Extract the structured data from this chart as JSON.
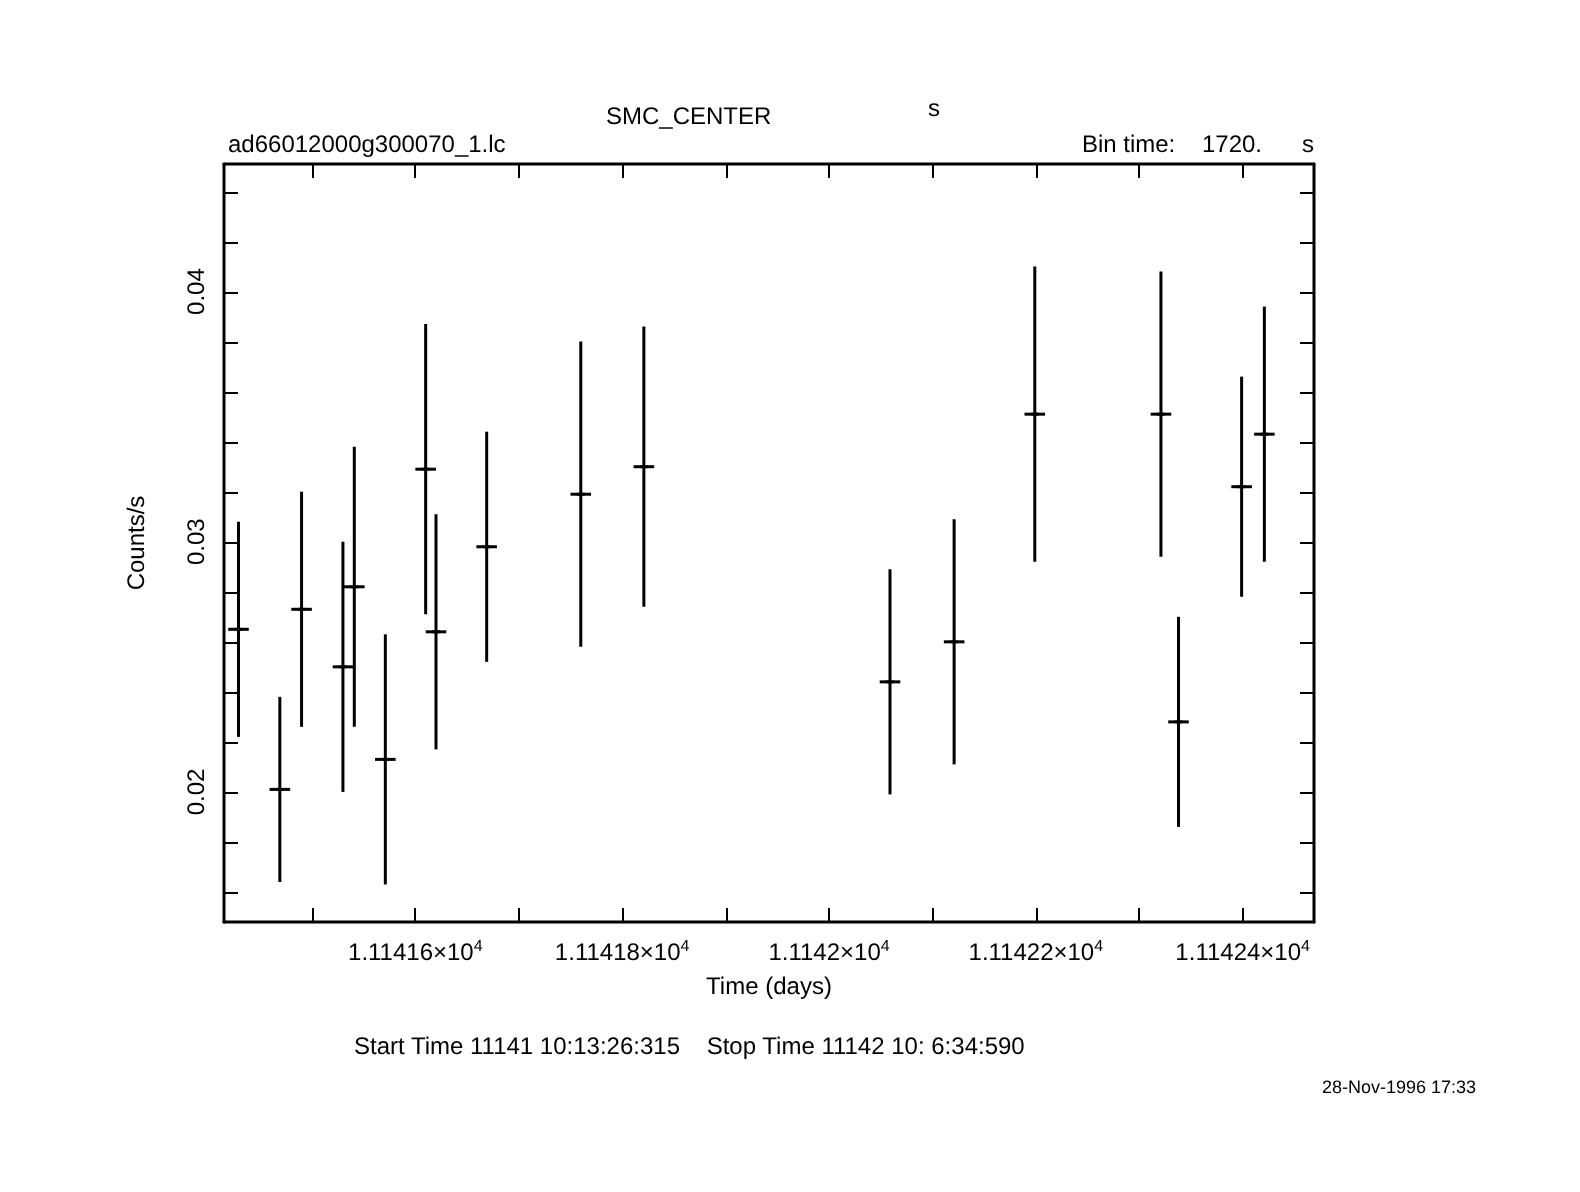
{
  "chart_data": {
    "type": "scatter",
    "title": "SMC_CENTER",
    "xlabel": "Time (days)",
    "ylabel": "Counts/s",
    "annotations": [
      "s",
      "ad66012000g300070_1.lc",
      "Bin time:    1720.      s",
      "Start Time 11141 10:13:26:315    Stop Time 11142 10: 6:34:590",
      "28-Nov-1996 17:33"
    ],
    "grid": false,
    "x": [
      11141.429,
      11141.469,
      11141.49,
      11141.53,
      11141.541,
      11141.571,
      11141.61,
      11141.62,
      11141.669,
      11141.76,
      11141.821,
      11142.059,
      11142.121,
      11142.199,
      11142.321,
      11142.338,
      11142.399,
      11142.421
    ],
    "series": [
      {
        "color": "#000000",
        "values": [
          0.0265,
          0.0201,
          0.0273,
          0.025,
          0.0282,
          0.0213,
          0.0329,
          0.0264,
          0.0298,
          0.0319,
          0.033,
          0.0244,
          0.026,
          0.0351,
          0.0351,
          0.0228,
          0.0322,
          0.0343
        ],
        "errors": [
          0.0043,
          0.0037,
          0.0047,
          0.005,
          0.0056,
          0.005,
          0.0058,
          0.0047,
          0.0046,
          0.0061,
          0.0056,
          0.0045,
          0.0049,
          0.0059,
          0.0057,
          0.0042,
          0.0044,
          0.0051
        ],
        "xerrors": [
          0.00995,
          0.00995,
          0.00995,
          0.00995,
          0.00995,
          0.00995,
          0.00995,
          0.00995,
          0.00995,
          0.00995,
          0.00995,
          0.00995,
          0.00995,
          0.00995,
          0.00995,
          0.00995,
          0.00995,
          0.00995
        ]
      }
    ],
    "xlim": [
      11141.415,
      11142.469
    ],
    "xticks": [
      {
        "value": 11141.5,
        "label": null
      },
      {
        "value": 11141.6,
        "label": "1.11416×10$^{4}$"
      },
      {
        "value": 11141.7,
        "label": null
      },
      {
        "value": 11141.8,
        "label": "1.11418×10$^{4}$"
      },
      {
        "value": 11141.9,
        "label": null
      },
      {
        "value": 11142.0,
        "label": "1.1142×10$^{4}$"
      },
      {
        "value": 11142.1,
        "label": null
      },
      {
        "value": 11142.2,
        "label": "1.11422×10$^{4}$"
      },
      {
        "value": 11142.3,
        "label": null
      },
      {
        "value": 11142.4,
        "label": "1.11424×10$^{4}$"
      }
    ],
    "ylim": [
      0.0148,
      0.0451
    ],
    "yticks": [
      {
        "value": 0.016,
        "label": null
      },
      {
        "value": 0.018,
        "label": null
      },
      0.02,
      {
        "value": 0.022,
        "label": null
      },
      {
        "value": 0.024,
        "label": null
      },
      {
        "value": 0.026,
        "label": null
      },
      {
        "value": 0.028,
        "label": null
      },
      0.03,
      {
        "value": 0.032,
        "label": null
      },
      {
        "value": 0.034,
        "label": null
      },
      {
        "value": 0.036,
        "label": null
      },
      {
        "value": 0.038,
        "label": null
      },
      0.04,
      {
        "value": 0.042,
        "label": null
      },
      {
        "value": 0.044,
        "label": null
      }
    ]
  }
}
